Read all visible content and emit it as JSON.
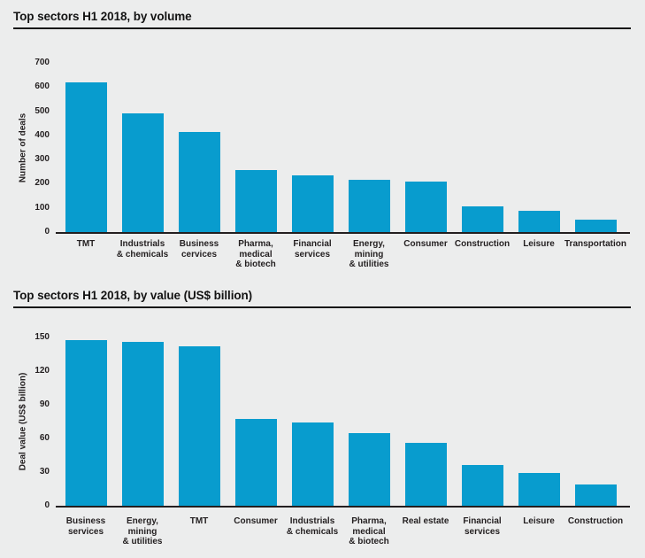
{
  "page": {
    "background_color": "#ECEDED",
    "accent_bar_color": "#089CCE",
    "text_color": "#231F20"
  },
  "chart_data": [
    {
      "type": "bar",
      "title": "Top sectors H1 2018, by volume",
      "xlabel": "",
      "ylabel": "Number of deals",
      "ylim": [
        0,
        700
      ],
      "yticks": [
        0,
        100,
        200,
        300,
        400,
        500,
        600,
        700
      ],
      "grid": false,
      "legend": null,
      "bar_color": "#089CCE",
      "categories": [
        "TMT",
        "Industrials & chemicals",
        "Business cervices",
        "Pharma, medical & biotech",
        "Financial services",
        "Energy, mining & utilities",
        "Consumer",
        "Construction",
        "Leisure",
        "Transportation"
      ],
      "category_lines": [
        [
          "TMT"
        ],
        [
          "Industrials",
          "& chemicals"
        ],
        [
          "Business",
          "cervices"
        ],
        [
          "Pharma,",
          "medical",
          "& biotech"
        ],
        [
          "Financial",
          "services"
        ],
        [
          "Energy,",
          "mining",
          "& utilities"
        ],
        [
          "Consumer"
        ],
        [
          "Construction"
        ],
        [
          "Leisure"
        ],
        [
          "Transportation"
        ]
      ],
      "values": [
        620,
        490,
        413,
        258,
        233,
        218,
        209,
        106,
        87,
        50
      ]
    },
    {
      "type": "bar",
      "title": "Top sectors H1 2018, by value (US$ billion)",
      "xlabel": "",
      "ylabel": "Deal value (US$ billion)",
      "ylim": [
        0,
        150
      ],
      "yticks": [
        0,
        30,
        60,
        90,
        120,
        150
      ],
      "grid": false,
      "legend": null,
      "bar_color": "#089CCE",
      "categories": [
        "Business services",
        "Energy, mining & utilities",
        "TMT",
        "Consumer",
        "Industrials & chemicals",
        "Pharma, medical & biotech",
        "Real estate",
        "Financial services",
        "Leisure",
        "Construction"
      ],
      "category_lines": [
        [
          "Business",
          "services"
        ],
        [
          "Energy,",
          "mining",
          "& utilities"
        ],
        [
          "TMT"
        ],
        [
          "Consumer"
        ],
        [
          "Industrials",
          "& chemicals"
        ],
        [
          "Pharma,",
          "medical",
          "& biotech"
        ],
        [
          "Real estate"
        ],
        [
          "Financial",
          "services"
        ],
        [
          "Leisure"
        ],
        [
          "Construction"
        ]
      ],
      "values": [
        148,
        146,
        142,
        77,
        74,
        65,
        56,
        36,
        29,
        19
      ]
    }
  ]
}
